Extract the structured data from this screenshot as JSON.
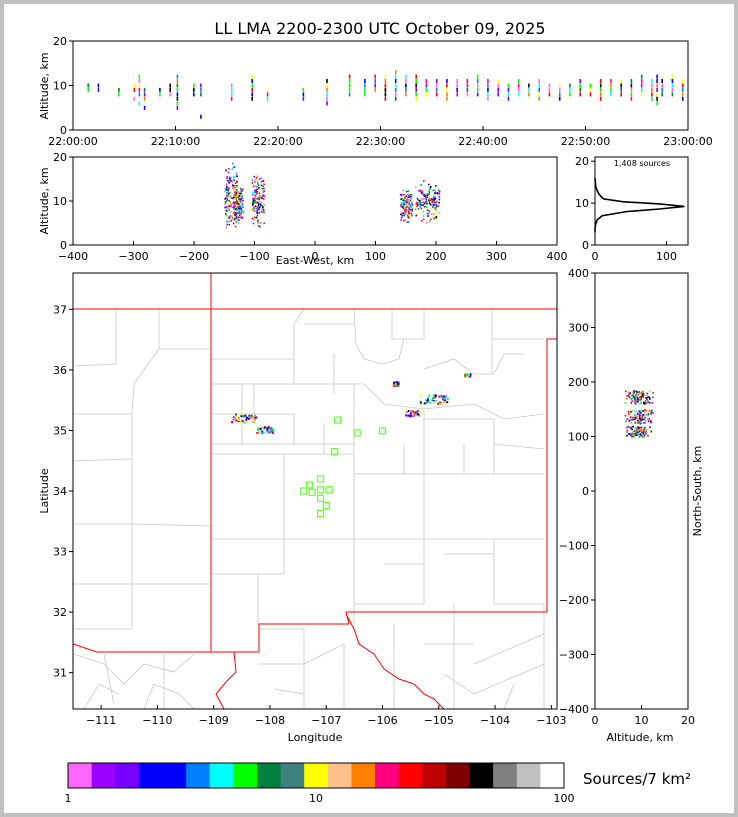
{
  "chart_data": {
    "type": "scatter",
    "title": "LL LMA 2200-2300 UTC October 09, 2025",
    "colors": {
      "frame": "#c0c0c0",
      "state_border": "#ff0000",
      "county_border": "#c8c8c8",
      "station_marker": "#66ff33"
    },
    "panels": {
      "time_altitude": {
        "ylabel": "Altitude, km",
        "ylim": [
          0,
          20
        ],
        "yticks": [
          "0",
          "10",
          "20"
        ],
        "xlim_minutes": [
          0,
          60
        ],
        "xticks": [
          "22:00:00",
          "22:10:00",
          "22:20:00",
          "22:30:00",
          "22:40:00",
          "22:50:00",
          "23:00:00"
        ],
        "cells": [
          {
            "t": 1.5,
            "alts": [
              9,
              10
            ]
          },
          {
            "t": 2.5,
            "alts": [
              9,
              10
            ]
          },
          {
            "t": 4.5,
            "alts": [
              8,
              9
            ]
          },
          {
            "t": 6,
            "alts": [
              7,
              9,
              10
            ]
          },
          {
            "t": 6.5,
            "alts": [
              6,
              8,
              9,
              10,
              11,
              12
            ]
          },
          {
            "t": 7,
            "alts": [
              5,
              7,
              8,
              9
            ]
          },
          {
            "t": 8.5,
            "alts": [
              8,
              9
            ]
          },
          {
            "t": 9.5,
            "alts": [
              8,
              9,
              10
            ]
          },
          {
            "t": 10.2,
            "alts": [
              5,
              6,
              7,
              8,
              9,
              10,
              11,
              12
            ]
          },
          {
            "t": 11.8,
            "alts": [
              8,
              9,
              10
            ]
          },
          {
            "t": 12.5,
            "alts": [
              3,
              8,
              9,
              10
            ]
          },
          {
            "t": 15.5,
            "alts": [
              7,
              8,
              9,
              10
            ]
          },
          {
            "t": 17.5,
            "alts": [
              7,
              8,
              9,
              10,
              11,
              12
            ]
          },
          {
            "t": 19,
            "alts": [
              7,
              8,
              9
            ]
          },
          {
            "t": 22.5,
            "alts": [
              7,
              8,
              9
            ]
          },
          {
            "t": 24.8,
            "alts": [
              6,
              7,
              8,
              9,
              10,
              11
            ]
          },
          {
            "t": 27,
            "alts": [
              8,
              9,
              10,
              11,
              12
            ]
          },
          {
            "t": 28.5,
            "alts": [
              8,
              9,
              10,
              11
            ]
          },
          {
            "t": 29.5,
            "alts": [
              9,
              10,
              11,
              12
            ]
          },
          {
            "t": 30.5,
            "alts": [
              7,
              8,
              9,
              10,
              11,
              12
            ]
          },
          {
            "t": 31.5,
            "alts": [
              7,
              8,
              9,
              10,
              11,
              12,
              13
            ]
          },
          {
            "t": 32.5,
            "alts": [
              8,
              9,
              10,
              11,
              12
            ]
          },
          {
            "t": 33.5,
            "alts": [
              7,
              8,
              9,
              10,
              11,
              12
            ]
          },
          {
            "t": 34.5,
            "alts": [
              8,
              9,
              10,
              11
            ]
          },
          {
            "t": 35.5,
            "alts": [
              8,
              9,
              10,
              11
            ]
          },
          {
            "t": 36.5,
            "alts": [
              7,
              8,
              9,
              10,
              11
            ]
          },
          {
            "t": 37.5,
            "alts": [
              8,
              9,
              10,
              11
            ]
          },
          {
            "t": 38.5,
            "alts": [
              8,
              9,
              10,
              11
            ]
          },
          {
            "t": 39.5,
            "alts": [
              8,
              9,
              10,
              11,
              12
            ]
          },
          {
            "t": 40.5,
            "alts": [
              7,
              8,
              9,
              10,
              11
            ]
          },
          {
            "t": 41.5,
            "alts": [
              8,
              9,
              10,
              11
            ]
          },
          {
            "t": 42.5,
            "alts": [
              7,
              8,
              9,
              10
            ]
          },
          {
            "t": 43.5,
            "alts": [
              8,
              9,
              10,
              11
            ]
          },
          {
            "t": 44.5,
            "alts": [
              8,
              9,
              10
            ]
          },
          {
            "t": 45.5,
            "alts": [
              7,
              8,
              9,
              10,
              11
            ]
          },
          {
            "t": 46.5,
            "alts": [
              8,
              9,
              10
            ]
          },
          {
            "t": 47.5,
            "alts": [
              7,
              8,
              9,
              10
            ]
          },
          {
            "t": 48.5,
            "alts": [
              8,
              9,
              10
            ]
          },
          {
            "t": 49.5,
            "alts": [
              8,
              9,
              10,
              11
            ]
          },
          {
            "t": 50.5,
            "alts": [
              8,
              9,
              10
            ]
          },
          {
            "t": 51.5,
            "alts": [
              7,
              8,
              9,
              10,
              11
            ]
          },
          {
            "t": 52.5,
            "alts": [
              8,
              9,
              10,
              11
            ]
          },
          {
            "t": 53.5,
            "alts": [
              8,
              9,
              10,
              11
            ]
          },
          {
            "t": 54.5,
            "alts": [
              7,
              8,
              9,
              10,
              11
            ]
          },
          {
            "t": 55.5,
            "alts": [
              8,
              9,
              10,
              11,
              12
            ]
          },
          {
            "t": 56.5,
            "alts": [
              7,
              8,
              9,
              10,
              11
            ]
          },
          {
            "t": 57,
            "alts": [
              6,
              7,
              8,
              9,
              10,
              11,
              12
            ]
          },
          {
            "t": 57.5,
            "alts": [
              8,
              9,
              10,
              11
            ]
          },
          {
            "t": 58.5,
            "alts": [
              8,
              9,
              10,
              11,
              12
            ]
          },
          {
            "t": 59.5,
            "alts": [
              7,
              8,
              9,
              10,
              11
            ]
          }
        ]
      },
      "ew_altitude": {
        "xlabel": "East-West, km",
        "ylabel": "Altitude, km",
        "xlim": [
          -400,
          400
        ],
        "xticks": [
          "−400",
          "−300",
          "−200",
          "−100",
          "0",
          "100",
          "200",
          "300",
          "400"
        ],
        "ylim": [
          0,
          20
        ],
        "yticks": [
          "0",
          "10",
          "20"
        ],
        "clusters": [
          {
            "x": [
              -150,
              -130
            ],
            "alt": [
              3,
              19
            ]
          },
          {
            "x": [
              -135,
              -120
            ],
            "alt": [
              5,
              14
            ]
          },
          {
            "x": [
              -105,
              -85
            ],
            "alt": [
              4,
              17
            ]
          },
          {
            "x": [
              140,
              160
            ],
            "alt": [
              5,
              13
            ]
          },
          {
            "x": [
              165,
              205
            ],
            "alt": [
              5,
              15
            ]
          }
        ]
      },
      "altitude_histogram": {
        "annotation": "1,408 sources",
        "xlim": [
          0,
          130
        ],
        "xticks": [
          "0",
          "100"
        ],
        "ylim": [
          0,
          21
        ],
        "yticks": [
          "0",
          "10",
          "20"
        ],
        "profile": [
          [
            0,
            3
          ],
          [
            0,
            4
          ],
          [
            1,
            5
          ],
          [
            3,
            6
          ],
          [
            10,
            7
          ],
          [
            45,
            8
          ],
          [
            90,
            8.6
          ],
          [
            125,
            9.2
          ],
          [
            90,
            9.8
          ],
          [
            40,
            10.3
          ],
          [
            12,
            11
          ],
          [
            6,
            12
          ],
          [
            3,
            13
          ],
          [
            1,
            14
          ],
          [
            0,
            16
          ]
        ]
      },
      "map": {
        "xlabel": "Longitude",
        "ylabel": "Latitude",
        "xlim": [
          -111.5,
          -102.9
        ],
        "ylim": [
          30.4,
          37.6
        ],
        "xticks": [
          "−111",
          "−110",
          "−109",
          "−108",
          "−107",
          "−106",
          "−105",
          "−104",
          "−103"
        ],
        "yticks": [
          "31",
          "32",
          "33",
          "34",
          "35",
          "36",
          "37"
        ],
        "source_clusters": [
          {
            "lon": [
              -108.7,
              -108.25
            ],
            "lat": [
              35.15,
              35.28
            ]
          },
          {
            "lon": [
              -108.25,
              -107.95
            ],
            "lat": [
              34.97,
              35.07
            ]
          },
          {
            "lon": [
              -105.35,
              -104.85
            ],
            "lat": [
              35.45,
              35.6
            ]
          },
          {
            "lon": [
              -105.6,
              -105.35
            ],
            "lat": [
              35.25,
              35.35
            ]
          },
          {
            "lon": [
              -105.82,
              -105.72
            ],
            "lat": [
              35.75,
              35.82
            ]
          },
          {
            "lon": [
              -104.55,
              -104.45
            ],
            "lat": [
              35.9,
              35.95
            ]
          }
        ],
        "stations": [
          [
            -106.8,
            35.17
          ],
          [
            -106.45,
            34.96
          ],
          [
            -106.0,
            34.99
          ],
          [
            -106.85,
            34.65
          ],
          [
            -107.1,
            34.2
          ],
          [
            -107.3,
            34.1
          ],
          [
            -107.4,
            34.0
          ],
          [
            -107.25,
            33.98
          ],
          [
            -107.1,
            34.02
          ],
          [
            -106.95,
            34.02
          ],
          [
            -107.1,
            33.88
          ],
          [
            -107.0,
            33.76
          ],
          [
            -107.1,
            33.63
          ]
        ]
      },
      "altitude_ns": {
        "xlabel": "Altitude, km",
        "ylabel": "North-South, km",
        "xlim": [
          0,
          20
        ],
        "xticks": [
          "0",
          "10",
          "20"
        ],
        "ylim": [
          -400,
          400
        ],
        "yticks": [
          "400",
          "300",
          "200",
          "100",
          "0",
          "−100",
          "−200",
          "−300",
          "−400"
        ],
        "clusters": [
          {
            "alt": [
              6,
              13
            ],
            "ns": [
              160,
              185
            ]
          },
          {
            "alt": [
              6,
              13
            ],
            "ns": [
              125,
              150
            ]
          },
          {
            "alt": [
              6,
              12
            ],
            "ns": [
              100,
              120
            ]
          }
        ]
      }
    },
    "colorbar": {
      "label": "Sources/7 km²",
      "ticks": [
        "1",
        "10",
        "100"
      ],
      "colors": [
        "#ff66ff",
        "#9900ff",
        "#7700ff",
        "#0000ff",
        "#0000ff",
        "#0080ff",
        "#00ffff",
        "#00ff00",
        "#008040",
        "#3c8080",
        "#ffff00",
        "#ffc08a",
        "#ff8000",
        "#ff007f",
        "#ff0000",
        "#c00000",
        "#800000",
        "#000000",
        "#808080",
        "#c0c0c0",
        "#ffffff"
      ]
    }
  }
}
